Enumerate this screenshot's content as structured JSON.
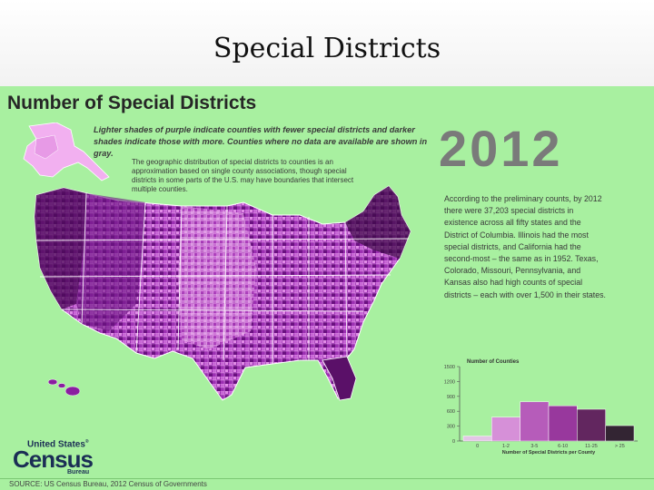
{
  "slide": {
    "title": "Special Districts"
  },
  "poster": {
    "title": "Number of Special Districts",
    "legend_note": "Lighter shades of purple indicate counties with fewer special districts and darker shades indicate those with more.  Counties where no data are available are shown in gray.",
    "geo_note": "The geographic distribution of special districts to counties is an approximation based on single county associations, though special districts in some parts of the U.S. may have boundaries that intersect multiple counties.",
    "year": "2012",
    "summary": "According to the preliminary counts, by 2012 there were 37,203 special districts in existence across all fifty states and the District of Columbia. Illinois had the most special districts, and California had the second-most – the same as in 1952. Texas, Colorado, Missouri, Pennsylvania, and Kansas also had high counts of special districts – each with over 1,500 in their states.",
    "source": "SOURCE: US Census Bureau, 2012 Census of Governments"
  },
  "logo": {
    "top": "United States",
    "main": "Census",
    "bottom": "Bureau"
  },
  "chart_data": {
    "type": "bar",
    "title": "Number of Counties",
    "xlabel": "Number of Special Districts per County",
    "ylabel": "Number of Counties",
    "categories": [
      "0",
      "1-2",
      "3-5",
      "6-10",
      "11-25",
      "> 25"
    ],
    "values": [
      100,
      480,
      790,
      710,
      640,
      310
    ],
    "ylim": [
      0,
      1500
    ],
    "yticks": [
      0,
      300,
      600,
      900,
      1200,
      1500
    ],
    "ytick_labels": [
      "0",
      "300",
      "600",
      "900",
      "1200",
      "1500"
    ],
    "colors": [
      "#e3c6e6",
      "#d690d8",
      "#b65cba",
      "#98389d",
      "#62265f",
      "#332533"
    ]
  },
  "map_colors": {
    "light": "#d98ae0",
    "medium": "#b044c0",
    "dark": "#7a1590",
    "darkest": "#3c0a44",
    "alaska": "#f2b0f0",
    "background": "#a8f0a0"
  }
}
